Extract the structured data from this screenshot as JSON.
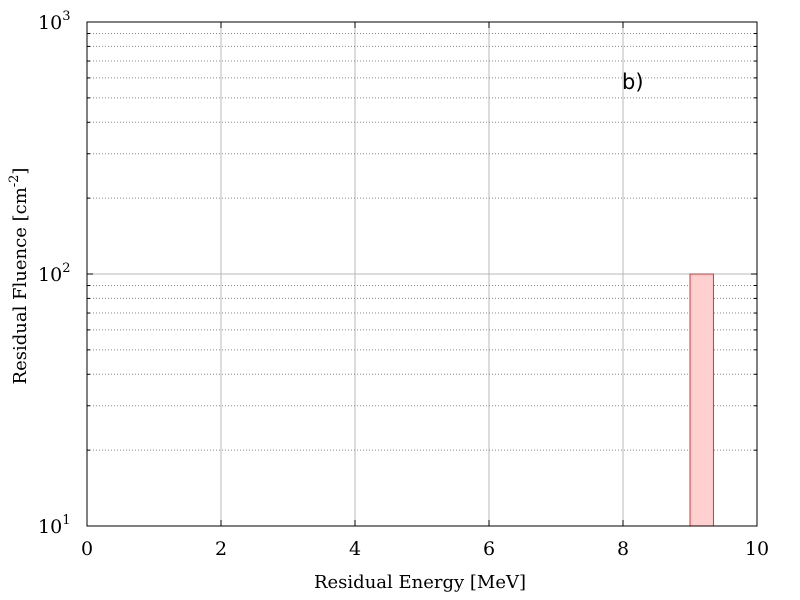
{
  "chart_data": {
    "type": "bar",
    "xlabel_text": "Residual Energy [MeV]",
    "ylabel_parts": {
      "pre": "Residual Fluence [cm",
      "exp": "-2",
      "post": "]"
    },
    "annotation": "b)",
    "xlim": [
      0,
      10
    ],
    "ylim": [
      10,
      1000
    ],
    "yscale": "log",
    "grid": true,
    "x_ticks": [
      {
        "value": 0,
        "label": "0"
      },
      {
        "value": 2,
        "label": "2"
      },
      {
        "value": 4,
        "label": "4"
      },
      {
        "value": 6,
        "label": "6"
      },
      {
        "value": 8,
        "label": "8"
      },
      {
        "value": 10,
        "label": "10"
      }
    ],
    "y_ticks": [
      {
        "value": 10,
        "base": "10",
        "exp": "1"
      },
      {
        "value": 100,
        "base": "10",
        "exp": "2"
      },
      {
        "value": 1000,
        "base": "10",
        "exp": "3"
      }
    ],
    "bars": [
      {
        "x_start": 9.0,
        "x_end": 9.35,
        "value": 100
      }
    ],
    "colors": {
      "bar_fill": "#ffd0d0",
      "bar_stroke": "#dd3333",
      "grid": "#b8b8b8",
      "minor_grid": "#888888"
    }
  }
}
